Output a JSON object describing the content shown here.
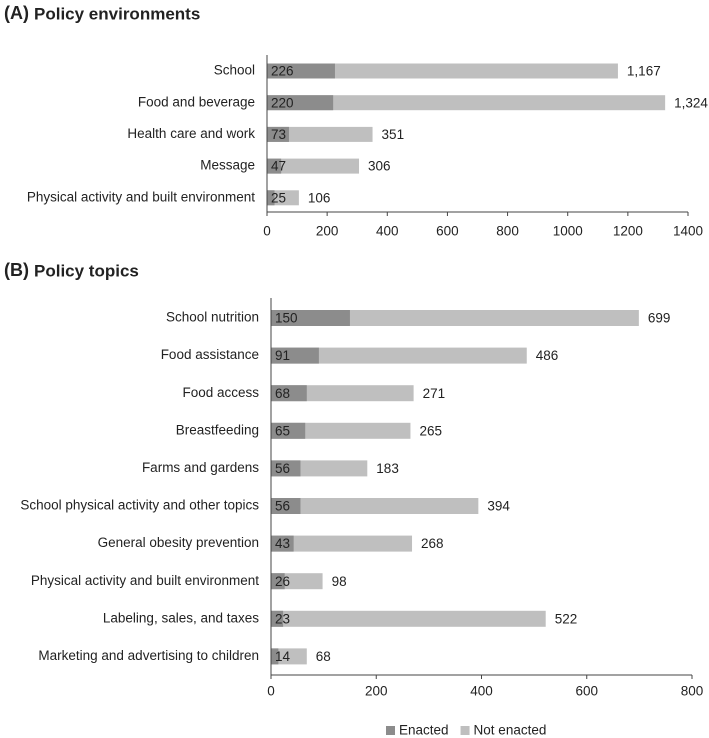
{
  "chart_data": [
    {
      "type": "bar",
      "orientation": "horizontal",
      "panel": "(A)",
      "title": "Policy environments",
      "categories": [
        "School",
        "Food and beverage",
        "Health care and work",
        "Message",
        "Physical activity and built environment"
      ],
      "series": [
        {
          "color": "#8c8c8c",
          "values": [
            226,
            220,
            73,
            47,
            25
          ]
        },
        {
          "color": "#bfbfbf",
          "values": [
            1167,
            1324,
            351,
            306,
            106
          ],
          "value_labels": [
            "1,167",
            "1,324",
            "351",
            "306",
            "106"
          ]
        }
      ],
      "xlim": [
        0,
        1400
      ],
      "xticks": [
        0,
        200,
        400,
        600,
        800,
        1000,
        1200,
        1400
      ]
    },
    {
      "type": "bar",
      "orientation": "horizontal",
      "panel": "(B)",
      "title": "Policy topics",
      "categories": [
        "School nutrition",
        "Food assistance",
        "Food access",
        "Breastfeeding",
        "Farms and gardens",
        "School physical activity and other topics",
        "General obesity prevention",
        "Physical activity and built environment",
        "Labeling, sales, and taxes",
        "Marketing and advertising to children"
      ],
      "series": [
        {
          "name": "Enacted",
          "color": "#8c8c8c",
          "values": [
            150,
            91,
            68,
            65,
            56,
            56,
            43,
            26,
            23,
            14
          ]
        },
        {
          "name": "Not enacted",
          "color": "#bfbfbf",
          "values": [
            699,
            486,
            271,
            265,
            183,
            394,
            268,
            98,
            522,
            68
          ]
        }
      ],
      "xlim": [
        0,
        800
      ],
      "xticks": [
        0,
        200,
        400,
        600,
        800
      ],
      "legend": "bottom"
    }
  ]
}
